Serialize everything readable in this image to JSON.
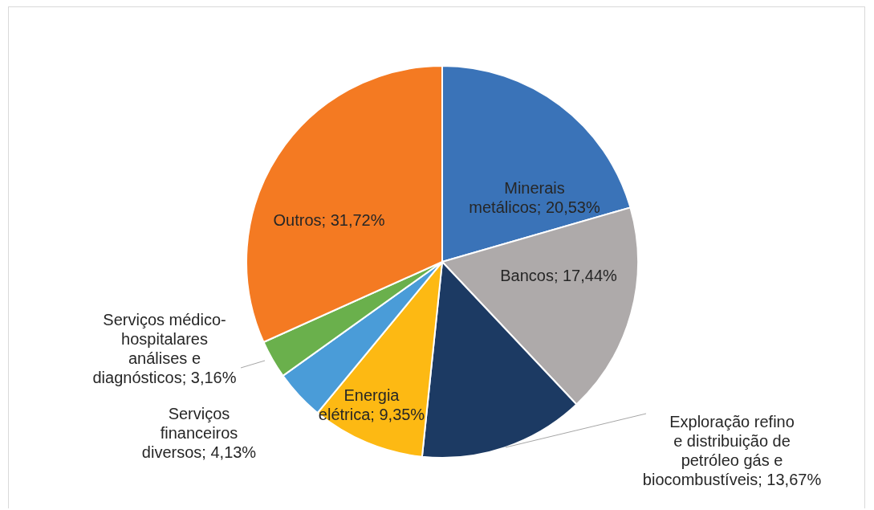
{
  "chart_data": {
    "type": "pie",
    "categories": [
      "Minerais metálicos",
      "Bancos",
      "Exploração refino e distribuição de petróleo gás e biocombustíveis",
      "Energia elétrica",
      "Serviços financeiros diversos",
      "Serviços médico-hospitalares análises e diagnósticos",
      "Outros"
    ],
    "values": [
      20.53,
      17.44,
      13.67,
      9.35,
      4.13,
      3.16,
      31.72
    ],
    "value_labels": [
      "20,53%",
      "17,44%",
      "13,67%",
      "9,35%",
      "4,13%",
      "3,16%",
      "31,72%"
    ],
    "colors": [
      "#3a73b8",
      "#aeaaaa",
      "#1c3a63",
      "#fdb913",
      "#4a9cd8",
      "#6ab04c",
      "#f47a22"
    ],
    "legend": false
  }
}
